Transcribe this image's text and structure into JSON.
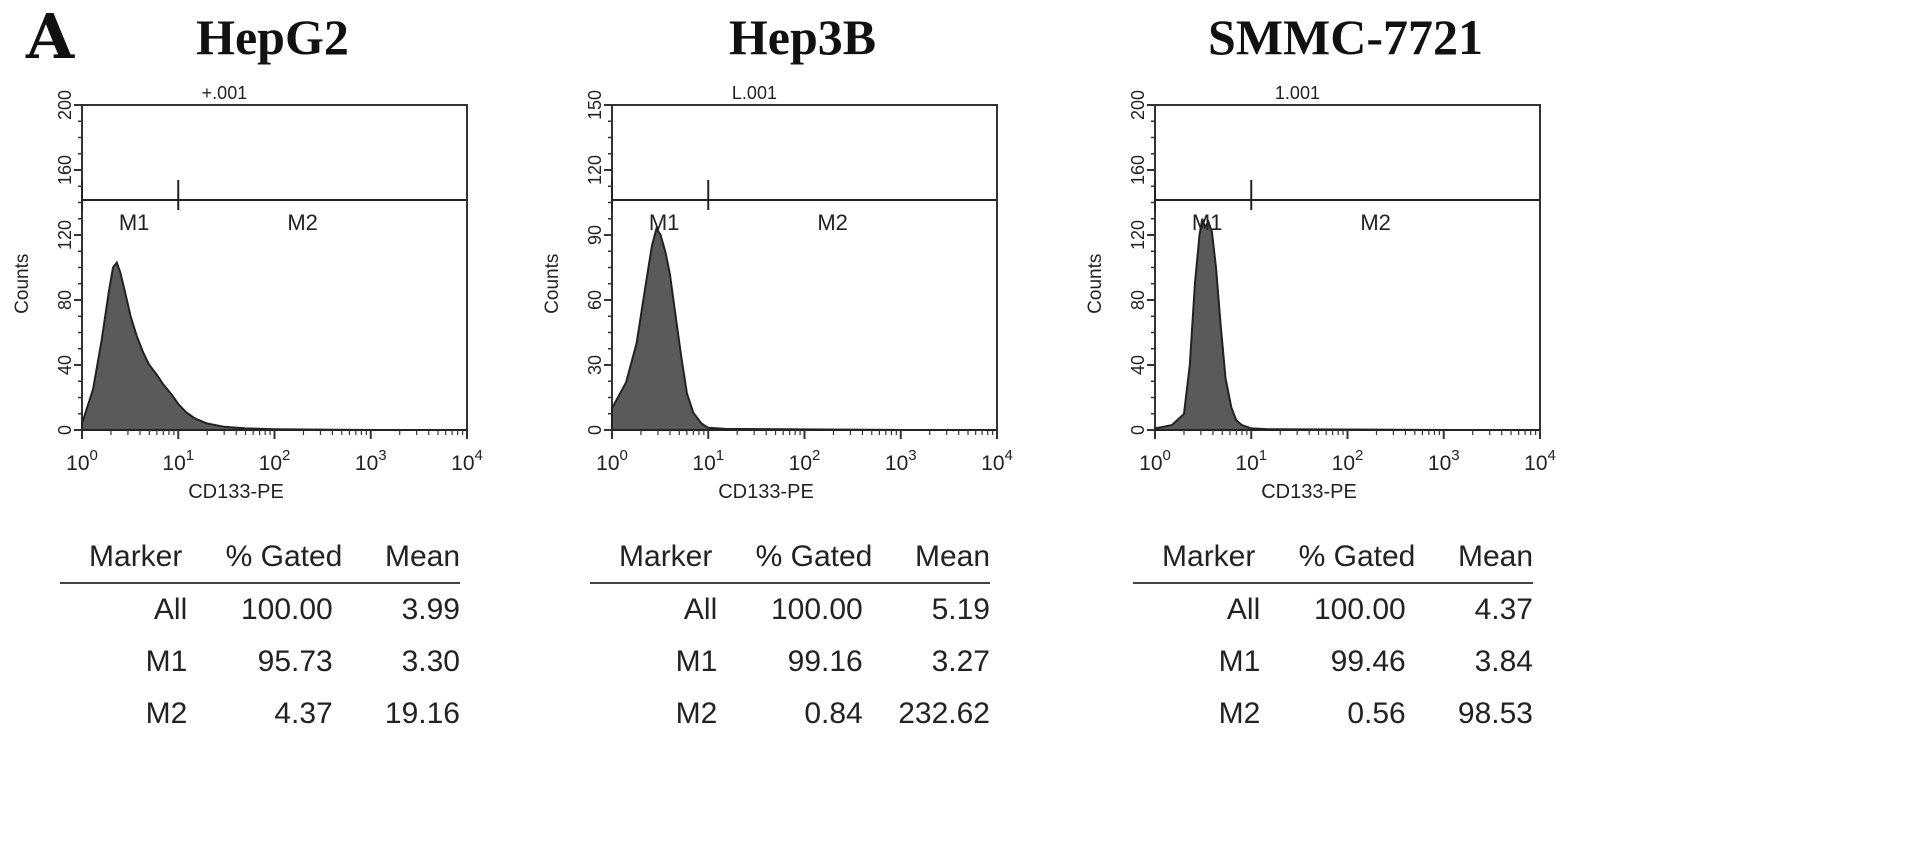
{
  "panel_letter": "A",
  "chart_data": [
    {
      "type": "area",
      "title": "HepG2",
      "annotation": "+.001",
      "xlabel": "CD133-PE",
      "ylabel": "Counts",
      "xscale": "log",
      "xlim": [
        1,
        10000
      ],
      "ylim": [
        0,
        200
      ],
      "yticks": [
        0,
        40,
        80,
        120,
        160,
        200
      ],
      "xticks": [
        {
          "base": "10",
          "exp": "0"
        },
        {
          "base": "10",
          "exp": "1"
        },
        {
          "base": "10",
          "exp": "2"
        },
        {
          "base": "10",
          "exp": "3"
        },
        {
          "base": "10",
          "exp": "4"
        }
      ],
      "markers": [
        {
          "name": "M1",
          "range": [
            1,
            10
          ]
        },
        {
          "name": "M2",
          "range": [
            10,
            10000
          ]
        }
      ],
      "series": [
        {
          "x": [
            1.0,
            1.3,
            1.6,
            1.9,
            2.1,
            2.3,
            2.5,
            2.8,
            3.2,
            3.7,
            4.3,
            5.0,
            6.0,
            7.0,
            8.5,
            10,
            12,
            15,
            20,
            30,
            50,
            100,
            1000,
            10000
          ],
          "y": [
            4,
            25,
            55,
            85,
            100,
            103,
            97,
            85,
            70,
            58,
            48,
            40,
            34,
            28,
            22,
            16,
            11,
            7,
            4,
            2,
            1,
            0.5,
            0,
            0
          ]
        }
      ],
      "stats": {
        "headers": [
          "Marker",
          "% Gated",
          "Mean"
        ],
        "rows": [
          [
            "All",
            "100.00",
            "3.99"
          ],
          [
            "M1",
            "95.73",
            "3.30"
          ],
          [
            "M2",
            "4.37",
            "19.16"
          ]
        ]
      }
    },
    {
      "type": "area",
      "title": "Hep3B",
      "annotation": "L.001",
      "xlabel": "CD133-PE",
      "ylabel": "Counts",
      "xscale": "log",
      "xlim": [
        1,
        10000
      ],
      "ylim": [
        0,
        150
      ],
      "yticks": [
        0,
        30,
        60,
        90,
        120,
        150
      ],
      "xticks": [
        {
          "base": "10",
          "exp": "0"
        },
        {
          "base": "10",
          "exp": "1"
        },
        {
          "base": "10",
          "exp": "2"
        },
        {
          "base": "10",
          "exp": "3"
        },
        {
          "base": "10",
          "exp": "4"
        }
      ],
      "markers": [
        {
          "name": "M1",
          "range": [
            1,
            10
          ]
        },
        {
          "name": "M2",
          "range": [
            10,
            10000
          ]
        }
      ],
      "series": [
        {
          "x": [
            1.0,
            1.4,
            1.8,
            2.2,
            2.6,
            2.9,
            3.2,
            3.6,
            4.0,
            4.5,
            5.2,
            6.0,
            7.0,
            8.5,
            10,
            15,
            100,
            1000,
            10000
          ],
          "y": [
            10,
            22,
            40,
            65,
            85,
            93,
            90,
            82,
            72,
            55,
            35,
            17,
            8,
            3,
            1,
            0.5,
            0.3,
            0,
            0
          ]
        }
      ],
      "stats": {
        "headers": [
          "Marker",
          "% Gated",
          "Mean"
        ],
        "rows": [
          [
            "All",
            "100.00",
            "5.19"
          ],
          [
            "M1",
            "99.16",
            "3.27"
          ],
          [
            "M2",
            "0.84",
            "232.62"
          ]
        ]
      }
    },
    {
      "type": "area",
      "title": "SMMC-7721",
      "annotation": "1.001",
      "xlabel": "CD133-PE",
      "ylabel": "Counts",
      "xscale": "log",
      "xlim": [
        1,
        10000
      ],
      "ylim": [
        0,
        200
      ],
      "yticks": [
        0,
        40,
        80,
        120,
        160,
        200
      ],
      "xticks": [
        {
          "base": "10",
          "exp": "0"
        },
        {
          "base": "10",
          "exp": "1"
        },
        {
          "base": "10",
          "exp": "2"
        },
        {
          "base": "10",
          "exp": "3"
        },
        {
          "base": "10",
          "exp": "4"
        }
      ],
      "markers": [
        {
          "name": "M1",
          "range": [
            1,
            10
          ]
        },
        {
          "name": "M2",
          "range": [
            10,
            10000
          ]
        }
      ],
      "series": [
        {
          "x": [
            1.0,
            1.5,
            2.0,
            2.3,
            2.6,
            2.9,
            3.1,
            3.3,
            3.6,
            3.9,
            4.3,
            4.8,
            5.4,
            6.2,
            7.0,
            8.0,
            10,
            15,
            100,
            1000,
            10000
          ],
          "y": [
            1,
            3,
            10,
            40,
            90,
            120,
            130,
            125,
            128,
            122,
            100,
            65,
            32,
            14,
            6,
            3,
            1,
            0.5,
            0.3,
            0,
            0
          ]
        }
      ],
      "stats": {
        "headers": [
          "Marker",
          "% Gated",
          "Mean"
        ],
        "rows": [
          [
            "All",
            "100.00",
            "4.37"
          ],
          [
            "M1",
            "99.46",
            "3.84"
          ],
          [
            "M2",
            "0.56",
            "98.53"
          ]
        ]
      }
    }
  ],
  "colors": {
    "fill": "#5a5a5a",
    "line": "#222222",
    "axis": "#333333"
  }
}
